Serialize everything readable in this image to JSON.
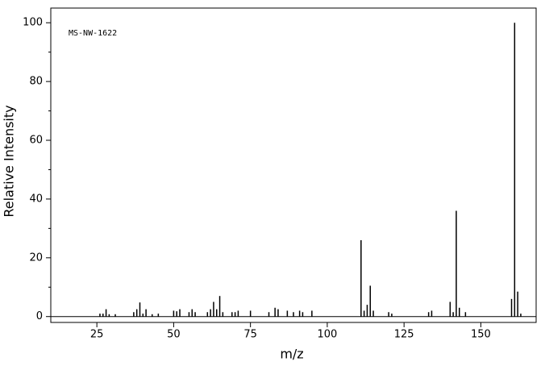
{
  "chart_data": {
    "type": "bar",
    "annotation": "MS-NW-1622",
    "xlabel": "m/z",
    "ylabel": "Relative Intensity",
    "x": [
      26,
      27,
      28,
      29,
      31,
      37,
      38,
      39,
      40,
      41,
      43,
      45,
      50,
      51,
      52,
      55,
      56,
      57,
      61,
      62,
      63,
      64,
      65,
      66,
      69,
      70,
      71,
      75,
      81,
      83,
      84,
      87,
      89,
      91,
      92,
      95,
      111,
      112,
      113,
      114,
      115,
      120,
      121,
      133,
      134,
      140,
      141,
      142,
      143,
      145,
      160,
      161,
      162,
      163
    ],
    "values": [
      1,
      1,
      2.5,
      0.8,
      0.8,
      1.5,
      2.5,
      4.8,
      1,
      2.5,
      0.8,
      1,
      2,
      1.8,
      2.5,
      1.5,
      2.5,
      1.5,
      1.5,
      2.5,
      5,
      2.5,
      7,
      1.5,
      1.5,
      1.5,
      2,
      2,
      1.5,
      3,
      2.5,
      2,
      1.5,
      2,
      1.5,
      2,
      26,
      2,
      4,
      10.5,
      2,
      1.5,
      1,
      1.5,
      2,
      5,
      1.5,
      36,
      3,
      1.5,
      6,
      100,
      8.5,
      1
    ],
    "color": "#000000",
    "xlim": [
      10,
      168
    ],
    "ylim": [
      -2,
      105
    ],
    "xticks": [
      25,
      50,
      75,
      100,
      125,
      150
    ],
    "yticks": [
      0,
      20,
      40,
      60,
      80,
      100
    ],
    "yminorticks": [
      10,
      30,
      50,
      70,
      90
    ]
  }
}
